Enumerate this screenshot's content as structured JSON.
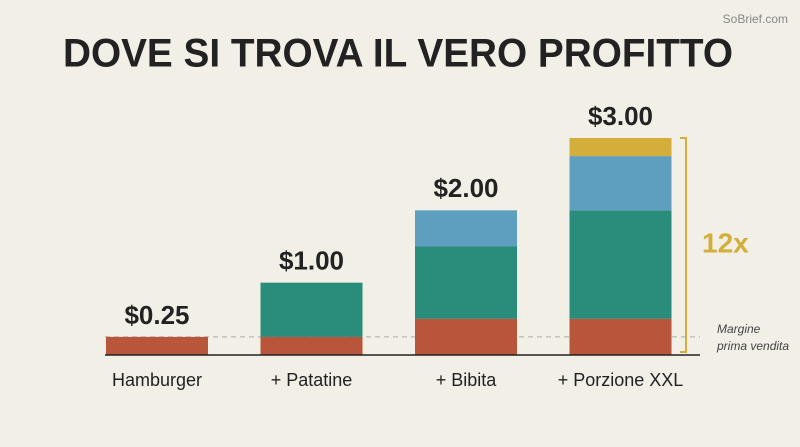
{
  "chart_data": {
    "type": "stacked-bar",
    "title": "DOVE SI TROVA IL VERO PROFITTO",
    "watermark": "SoBrief.com",
    "categories": [
      "Hamburger",
      "+ Patatine",
      "+ Bibita",
      "+ Porzione XXL"
    ],
    "series": [
      {
        "color": "#b9553a",
        "values": [
          0.25,
          0.25,
          0.5,
          0.5
        ]
      },
      {
        "color": "#2a8c7a",
        "values": [
          null,
          0.75,
          1.0,
          1.5
        ]
      },
      {
        "color": "#5e9fc0",
        "values": [
          null,
          null,
          0.5,
          0.75
        ]
      },
      {
        "color": "#d4ae3a",
        "values": [
          null,
          null,
          null,
          0.25
        ]
      }
    ],
    "totals": {
      "values": [
        0.25,
        1.0,
        2.0,
        3.0
      ],
      "value_labels": [
        "$0.25",
        "$1.00",
        "$2.00",
        "$3.00"
      ]
    },
    "ylim": [
      0,
      3
    ],
    "margin_line": {
      "value": 0.25,
      "label": [
        "Margine",
        "prima vendita"
      ]
    },
    "bracket": {
      "label": "12x",
      "color": "#d4ae3a"
    }
  }
}
